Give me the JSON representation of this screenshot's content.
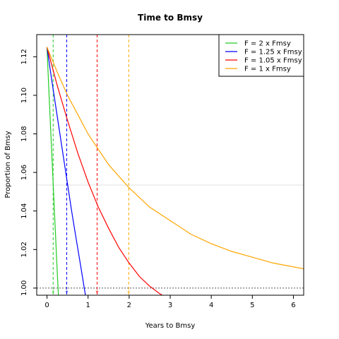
{
  "chart_data": {
    "type": "line",
    "title": "Time to Bmsy",
    "xlabel": "Years to Bmsy",
    "ylabel": "Proportion of Bmsy",
    "xlim": [
      -0.25,
      6.25
    ],
    "ylim": [
      0.9963,
      1.1315
    ],
    "xticks": [
      "0",
      "1",
      "2",
      "3",
      "4",
      "5",
      "6"
    ],
    "yticks": [
      "1.00",
      "1.02",
      "1.04",
      "1.06",
      "1.08",
      "1.10",
      "1.12"
    ],
    "legend_position": "top-right",
    "series": [
      {
        "name": "F = 2 x Fmsy",
        "color": "#22cc22",
        "x": [
          0,
          0.05,
          0.1,
          0.15,
          0.2,
          0.25,
          0.3
        ],
        "y": [
          1.125,
          1.101,
          1.077,
          1.054,
          1.031,
          1.008,
          0.987
        ]
      },
      {
        "name": "F = 1.25 x Fmsy",
        "color": "#0000ff",
        "x": [
          0,
          0.1,
          0.2,
          0.3,
          0.4,
          0.5,
          0.6,
          0.7,
          0.8,
          0.9,
          1.0
        ],
        "y": [
          1.125,
          1.11,
          1.096,
          1.082,
          1.068,
          1.054,
          1.04,
          1.027,
          1.014,
          1.001,
          0.988
        ]
      },
      {
        "name": "F = 1.05 x Fmsy",
        "color": "#ff0000",
        "x": [
          0,
          0.25,
          0.5,
          0.75,
          1.0,
          1.25,
          1.5,
          1.75,
          2.0,
          2.25,
          2.5,
          2.75,
          3.0,
          3.25
        ],
        "y": [
          1.125,
          1.105,
          1.087,
          1.07,
          1.055,
          1.042,
          1.031,
          1.021,
          1.013,
          1.006,
          1.001,
          0.997,
          0.994,
          0.992
        ]
      },
      {
        "name": "F = 1 x Fmsy",
        "color": "#ffa500",
        "x": [
          0,
          0.25,
          0.5,
          0.75,
          1.0,
          1.5,
          2.0,
          2.5,
          3.0,
          3.5,
          4.0,
          4.5,
          5.0,
          5.5,
          6.0,
          6.25
        ],
        "y": [
          1.125,
          1.112,
          1.1,
          1.09,
          1.08,
          1.064,
          1.052,
          1.042,
          1.035,
          1.028,
          1.023,
          1.019,
          1.016,
          1.013,
          1.011,
          1.01
        ]
      }
    ],
    "vlines": [
      {
        "x": 0.15,
        "color": "#22cc22"
      },
      {
        "x": 0.48,
        "color": "#0000ff"
      },
      {
        "x": 1.22,
        "color": "#ff0000"
      },
      {
        "x": 1.99,
        "color": "#ffa500"
      }
    ],
    "hline": {
      "y": 1.0,
      "color": "#555555"
    }
  }
}
